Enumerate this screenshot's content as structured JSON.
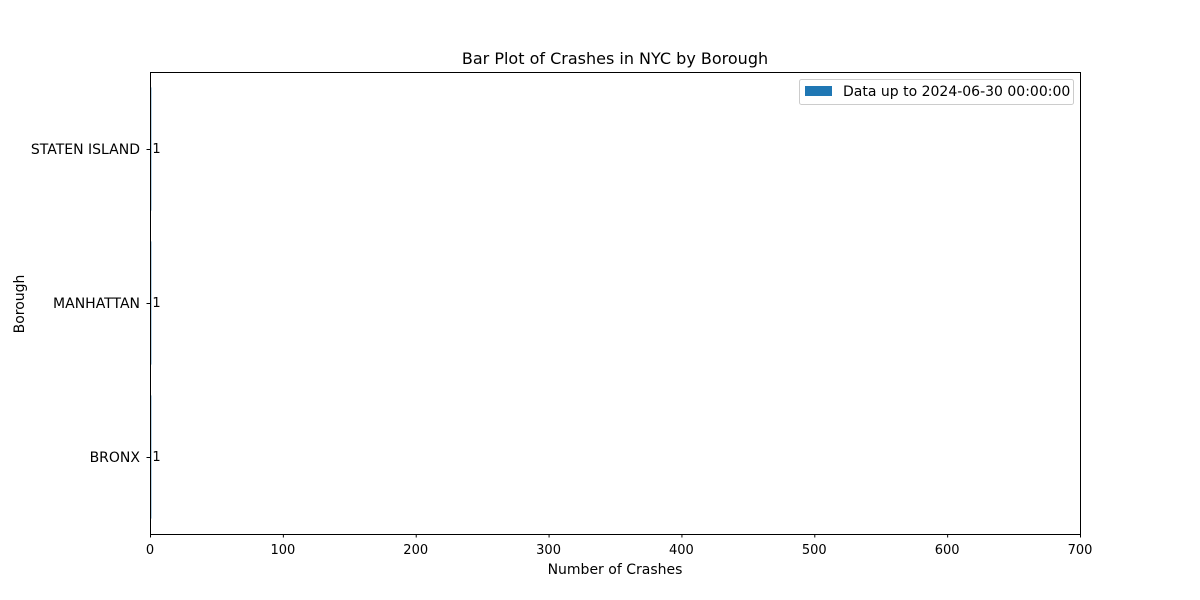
{
  "chart_data": {
    "type": "bar",
    "orientation": "horizontal",
    "title": "Bar Plot of Crashes in NYC by Borough",
    "xlabel": "Number of Crashes",
    "ylabel": "Borough",
    "categories": [
      "BRONX",
      "MANHATTAN",
      "STATEN ISLAND"
    ],
    "series": [
      {
        "name": "Data up to 2024-06-30 00:00:00",
        "values": [
          1,
          1,
          1
        ],
        "color": "#1f77b4"
      }
    ],
    "data_labels": [
      "1",
      "1",
      "1"
    ],
    "xlim": [
      0,
      700
    ],
    "xticks": [
      0,
      100,
      200,
      300,
      400,
      500,
      600,
      700
    ],
    "xtick_labels": [
      "0",
      "100",
      "200",
      "300",
      "400",
      "500",
      "600",
      "700"
    ],
    "grid": false,
    "legend_position": "top-right"
  }
}
